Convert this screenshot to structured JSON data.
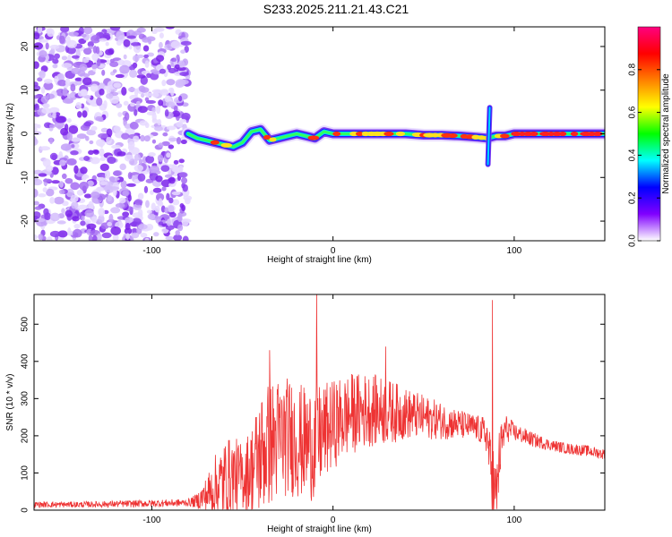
{
  "title": "S233.2025.211.21.43.C21",
  "chart_data": [
    {
      "type": "heatmap",
      "xlabel": "Height of straight line (km)",
      "ylabel": "Frequency (Hz)",
      "xlim": [
        -165,
        150
      ],
      "ylim": [
        -24.5,
        24.5
      ],
      "xticks": [
        -100,
        0,
        100
      ],
      "yticks": [
        -20,
        -10,
        0,
        10,
        20
      ],
      "colorbar": {
        "label": "Normalized spectral amplitude",
        "range": [
          0,
          1
        ],
        "ticks": [
          "0.0",
          "0.2",
          "0.4",
          "0.6",
          "0.8"
        ],
        "tick_values": [
          0.0,
          0.2,
          0.4,
          0.6,
          0.8
        ],
        "colormap": [
          "#ffffff",
          "#8000ff",
          "#0000ff",
          "#00ffff",
          "#00ff00",
          "#ffff00",
          "#ff8000",
          "#ff0000",
          "#ff0080"
        ]
      },
      "noise_region": {
        "x_range": [
          -165,
          -80
        ],
        "description_level": "low amplitude, broadband"
      },
      "ridge": [
        {
          "x": -80,
          "y": 0.0
        },
        {
          "x": -75,
          "y": -1.0
        },
        {
          "x": -70,
          "y": -1.5
        },
        {
          "x": -65,
          "y": -2.0
        },
        {
          "x": -60,
          "y": -2.5
        },
        {
          "x": -55,
          "y": -3.0
        },
        {
          "x": -50,
          "y": -2.0
        },
        {
          "x": -45,
          "y": 0.5
        },
        {
          "x": -40,
          "y": 1.0
        },
        {
          "x": -35,
          "y": -1.5
        },
        {
          "x": -30,
          "y": -1.0
        },
        {
          "x": -25,
          "y": -0.5
        },
        {
          "x": -20,
          "y": 0.0
        },
        {
          "x": -15,
          "y": -0.5
        },
        {
          "x": -10,
          "y": -1.0
        },
        {
          "x": -5,
          "y": 0.5
        },
        {
          "x": 0,
          "y": 0.0
        },
        {
          "x": 10,
          "y": 0.0
        },
        {
          "x": 20,
          "y": 0.0
        },
        {
          "x": 30,
          "y": 0.0
        },
        {
          "x": 40,
          "y": 0.0
        },
        {
          "x": 50,
          "y": -0.3
        },
        {
          "x": 60,
          "y": -0.3
        },
        {
          "x": 70,
          "y": -0.5
        },
        {
          "x": 80,
          "y": -0.8
        },
        {
          "x": 85,
          "y": -1.0
        },
        {
          "x": 90,
          "y": -0.5
        },
        {
          "x": 95,
          "y": -0.5
        },
        {
          "x": 100,
          "y": 0.0
        },
        {
          "x": 110,
          "y": 0.0
        },
        {
          "x": 120,
          "y": 0.0
        },
        {
          "x": 130,
          "y": 0.0
        },
        {
          "x": 140,
          "y": 0.0
        },
        {
          "x": 150,
          "y": 0.0
        }
      ]
    },
    {
      "type": "line",
      "xlabel": "Height of straight line (km)",
      "ylabel": "SNR (10 * v/v)",
      "xlim": [
        -165,
        150
      ],
      "ylim": [
        0,
        580
      ],
      "xticks": [
        -100,
        0,
        100
      ],
      "yticks": [
        0,
        100,
        200,
        300,
        400,
        500
      ],
      "color": "#ee3333",
      "envelope": {
        "x": [
          -165,
          -140,
          -100,
          -80,
          -75,
          -70,
          -65,
          -60,
          -55,
          -50,
          -45,
          -40,
          -35,
          -30,
          -25,
          -20,
          -15,
          -10,
          -5,
          0,
          10,
          20,
          30,
          40,
          50,
          60,
          70,
          80,
          85,
          87,
          88,
          90,
          92,
          95,
          100,
          110,
          120,
          130,
          140,
          150
        ],
        "base": [
          15,
          15,
          18,
          20,
          25,
          40,
          60,
          80,
          90,
          90,
          110,
          150,
          180,
          190,
          200,
          190,
          180,
          180,
          210,
          230,
          260,
          270,
          265,
          260,
          250,
          240,
          230,
          220,
          200,
          120,
          60,
          30,
          150,
          220,
          210,
          190,
          175,
          165,
          160,
          150
        ],
        "amp": [
          8,
          8,
          10,
          10,
          20,
          50,
          90,
          110,
          110,
          90,
          120,
          170,
          170,
          170,
          160,
          160,
          150,
          160,
          130,
          120,
          110,
          100,
          90,
          70,
          60,
          50,
          40,
          35,
          50,
          80,
          150,
          100,
          80,
          40,
          25,
          20,
          15,
          15,
          15,
          15
        ]
      },
      "peaks": [
        {
          "x": -35,
          "y": 430
        },
        {
          "x": -9,
          "y": 580
        },
        {
          "x": 29,
          "y": 440
        },
        {
          "x": 88,
          "y": 565
        }
      ]
    }
  ]
}
